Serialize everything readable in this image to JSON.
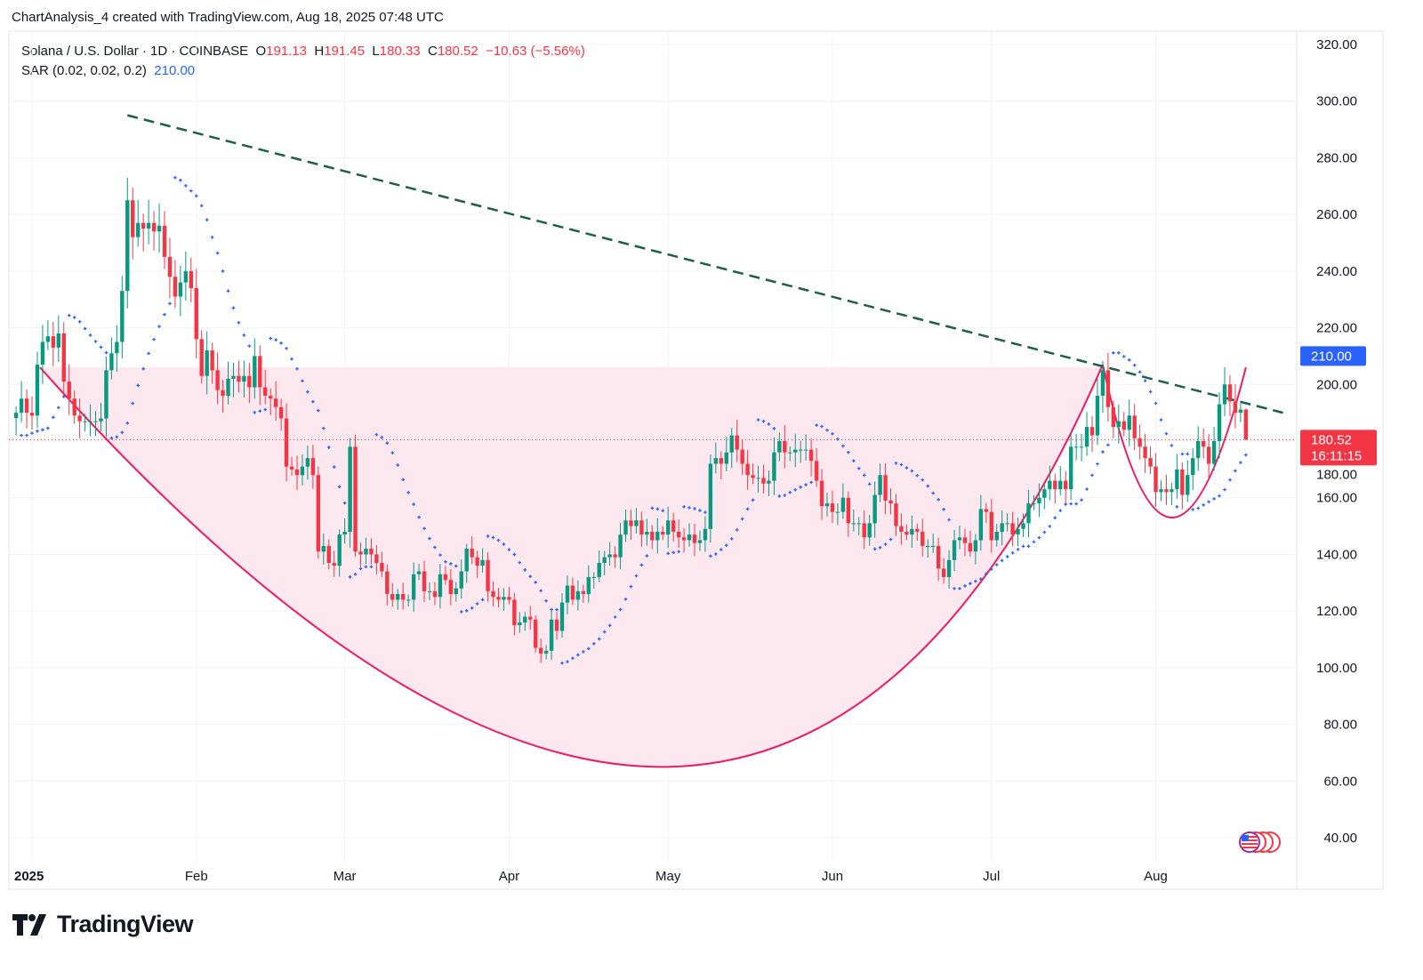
{
  "credit": "ChartAnalysis_4 created with TradingView.com, Aug 18, 2025 07:48 UTC",
  "legend": {
    "symbol": "Solana / U.S. Dollar · 1D · COINBASE",
    "o_label": "O",
    "o": "191.13",
    "h_label": "H",
    "h": "191.45",
    "l_label": "L",
    "l": "180.33",
    "c_label": "C",
    "c": "180.52",
    "change": "−10.63 (−5.56%)",
    "indicator": "SAR (0.02, 0.02, 0.2)",
    "indicator_value": "210.00"
  },
  "price_badges": {
    "sar": "210.00",
    "last": "180.52",
    "countdown": "16:11:15"
  },
  "logo_text": "TradingView",
  "colors": {
    "up": "#089981",
    "down": "#f23645",
    "sar": "#2962ff",
    "trend": "#1e5e4b",
    "cup": "#f0195b",
    "cup_fill": "#fde4ec"
  },
  "chart_data": {
    "type": "candlestick",
    "title": "Solana / U.S. Dollar · 1D · COINBASE",
    "ylim": [
      40,
      320
    ],
    "yticks": [
      40,
      60,
      80,
      100,
      120,
      140,
      160,
      180,
      200,
      220,
      240,
      260,
      280,
      300,
      320
    ],
    "xticks": [
      {
        "label": "2025",
        "day": 0,
        "bold": true
      },
      {
        "label": "Feb",
        "day": 31
      },
      {
        "label": "Mar",
        "day": 59
      },
      {
        "label": "Apr",
        "day": 90
      },
      {
        "label": "May",
        "day": 120
      },
      {
        "label": "Jun",
        "day": 151
      },
      {
        "label": "Jul",
        "day": 181
      },
      {
        "label": "Aug",
        "day": 212
      }
    ],
    "first_candle_day": -3,
    "last_open": 191.13,
    "last_high": 191.45,
    "last_low": 180.33,
    "last_close": 180.52,
    "closes": [
      190,
      195,
      190,
      189,
      207,
      215,
      217,
      213,
      218,
      201,
      195,
      189,
      187,
      187,
      187,
      187,
      188,
      205,
      211,
      215,
      233,
      265,
      252,
      257,
      255,
      257,
      254,
      256,
      245,
      238,
      231,
      236,
      240,
      234,
      216,
      203,
      212,
      205,
      198,
      196,
      202,
      203,
      201,
      203,
      199,
      210,
      199,
      196,
      195,
      192,
      188,
      171,
      170,
      168,
      171,
      174,
      168,
      141,
      143,
      137,
      136,
      147,
      148,
      178,
      141,
      140,
      142,
      140,
      137,
      134,
      126,
      124,
      126,
      124,
      124,
      133,
      134,
      127,
      127,
      125,
      133,
      131,
      126,
      128,
      134,
      142,
      139,
      136,
      138,
      127,
      125,
      124,
      125,
      124,
      115,
      116,
      118,
      117,
      107,
      105,
      106,
      117,
      113,
      123,
      129,
      124,
      127,
      126,
      132,
      132,
      137,
      139,
      140,
      139,
      147,
      152,
      150,
      152,
      147,
      148,
      145,
      148,
      147,
      152,
      148,
      146,
      145,
      147,
      144,
      145,
      149,
      172,
      174,
      172,
      176,
      182,
      177,
      172,
      168,
      167,
      167,
      165,
      166,
      176,
      180,
      176,
      176,
      177,
      177,
      177,
      173,
      166,
      157,
      158,
      155,
      155,
      160,
      151,
      151,
      151,
      146,
      151,
      161,
      168,
      159,
      158,
      150,
      148,
      147,
      149,
      148,
      143,
      143,
      143,
      135,
      132,
      138,
      145,
      146,
      144,
      141,
      145,
      156,
      155,
      145,
      148,
      151,
      151,
      147,
      149,
      151,
      158,
      158,
      160,
      163,
      166,
      163,
      166,
      163,
      178,
      178,
      178,
      185,
      182,
      196,
      205,
      192,
      185,
      187,
      184,
      189,
      181,
      178,
      174,
      171,
      162,
      163,
      162,
      163,
      170,
      161,
      168,
      174,
      180,
      178,
      172,
      180,
      193,
      200,
      194,
      190,
      191.13,
      180.52
    ],
    "indicator": {
      "name": "Parabolic SAR",
      "params": [
        0.02,
        0.02,
        0.2
      ],
      "last_value": 210.0
    },
    "annotations": {
      "trendline": {
        "style": "dashed",
        "from": {
          "day": 18,
          "price": 295
        },
        "to": {
          "day": 236,
          "price": 190
        }
      },
      "cup": {
        "start": {
          "day": 1.5,
          "price": 206
        },
        "bottom": {
          "day": 119,
          "price": 65
        },
        "end": {
          "day": 202,
          "price": 207
        }
      },
      "handle": {
        "start": {
          "day": 202,
          "price": 207
        },
        "bottom": {
          "day": 215,
          "price": 153
        },
        "end": {
          "day": 229,
          "price": 206
        }
      },
      "zone_top_price": 206,
      "current_price_line": 180.52
    }
  }
}
